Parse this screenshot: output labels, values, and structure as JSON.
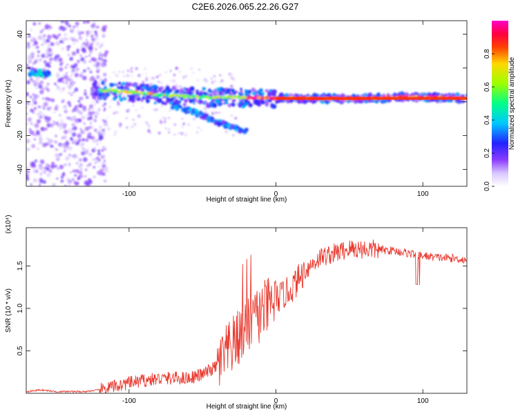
{
  "figure_title": "C2E6.2026.065.22.26.G27",
  "chart_data": [
    {
      "type": "heatmap",
      "title": "C2E6.2026.065.22.26.G27",
      "xlabel": "Height of straight line (km)",
      "ylabel": "Frequency (Hz)",
      "xlim": [
        -170,
        130
      ],
      "ylim": [
        -50,
        48
      ],
      "xticks": [
        -100,
        0,
        100
      ],
      "yticks": [
        -40,
        -20,
        0,
        20,
        40
      ],
      "colorbar": {
        "label": "Normalized spectral amplitude",
        "range": [
          0,
          1
        ],
        "ticks": [
          0.0,
          0.2,
          0.4,
          0.6,
          0.8
        ]
      },
      "ridge": [
        {
          "x": -120,
          "freq": 7
        },
        {
          "x": -100,
          "freq": 6
        },
        {
          "x": -80,
          "freq": 4
        },
        {
          "x": -60,
          "freq": 3
        },
        {
          "x": -40,
          "freq": 2.5
        },
        {
          "x": -20,
          "freq": 2.5
        },
        {
          "x": 0,
          "freq": 2
        },
        {
          "x": 20,
          "freq": 2
        },
        {
          "x": 60,
          "freq": 2
        },
        {
          "x": 90,
          "freq": 3
        },
        {
          "x": 130,
          "freq": 2
        }
      ],
      "branch": [
        {
          "x": -70,
          "freq": -2
        },
        {
          "x": -50,
          "freq": -8
        },
        {
          "x": -40,
          "freq": -12
        },
        {
          "x": -20,
          "freq": -18
        }
      ]
    },
    {
      "type": "line",
      "xlabel": "Height of straight line (km)",
      "ylabel": "SNR (10 * v/v)",
      "multiplier": "(x10⁴)",
      "xlim": [
        -170,
        130
      ],
      "ylim": [
        0,
        1.95
      ],
      "xticks": [
        -100,
        0,
        100
      ],
      "yticks": [
        0.5,
        1.0,
        1.5
      ],
      "ytick_labels": [
        "0.5",
        "1.0",
        "1.5"
      ],
      "series": [
        {
          "name": "SNR",
          "color": "#e8392e",
          "x": [
            -170,
            -160,
            -150,
            -140,
            -130,
            -120,
            -110,
            -100,
            -90,
            -80,
            -70,
            -60,
            -50,
            -40,
            -30,
            -20,
            -10,
            0,
            10,
            20,
            30,
            40,
            50,
            60,
            70,
            80,
            90,
            100,
            110,
            120,
            130
          ],
          "y": [
            0.02,
            0.04,
            0.02,
            0.02,
            0.02,
            0.04,
            0.08,
            0.12,
            0.15,
            0.17,
            0.18,
            0.18,
            0.22,
            0.32,
            0.55,
            0.78,
            0.95,
            1.1,
            1.22,
            1.45,
            1.6,
            1.65,
            1.7,
            1.7,
            1.69,
            1.68,
            1.65,
            1.62,
            1.6,
            1.59,
            1.57
          ]
        }
      ]
    }
  ]
}
